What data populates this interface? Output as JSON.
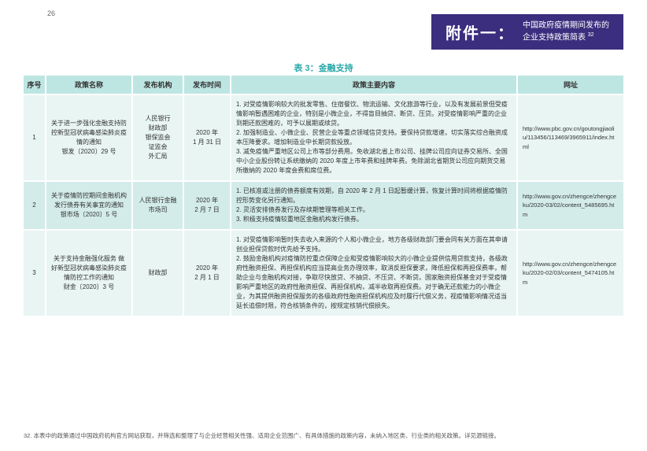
{
  "page": {
    "num": "26"
  },
  "appendix": {
    "title": "附件一：",
    "line1": "中国政府疫情期间发布的",
    "line2": "企业支持政策简表",
    "sup": "32"
  },
  "table_title": "表 3：金融支持",
  "headers": {
    "seq": "序号",
    "name": "政策名称",
    "org": "发布机构",
    "date": "发布时间",
    "body": "政策主要内容",
    "url": "网址"
  },
  "rows": [
    {
      "seq": "1",
      "name": "关于进一步强化金融支持防控新型冠状病毒感染肺炎疫情的通知\n银发〔2020〕29 号",
      "org": "人民银行\n财政部\n银保监会\n证监会\n外汇局",
      "date": "2020 年\n1 月 31 日",
      "body": "1. 对受疫情影响较大的批发零售、住宿餐饮、物流运输、文化旅游等行业，以及有发展前景但受疫情影响暂遇困难的企业，特别是小微企业，不得盲目抽贷、断贷、压贷。对受疫情影响严重的企业到期还款困难的，可予以展期或续贷。\n2. 加强制造业、小微企业、民营企业等重点领域信贷支持。要保持贷款增速，切实落实综合融资成本压降要求。增加制造业中长期贷款投放。\n3. 减免疫情严重地区公司上市等部分费用。免收湖北省上市公司、挂牌公司应向证券交易所、全国中小企业股份转让系统缴纳的 2020 年度上市年费和挂牌年费。免除湖北省期货公司应向期货交易所缴纳的 2020 年度会费和席位费。",
      "url": "http://www.pbc.gov.cn/goutongjiaoliu/113456/113469/3965911/index.html"
    },
    {
      "seq": "2",
      "name": "关于疫情防控期间金融机构发行债券有关事宜的通知\n银市场〔2020〕5 号",
      "org": "人民银行金融\n市场司",
      "date": "2020 年\n2 月 7 日",
      "body": "1. 已核准或注册的债券额度有效期，自 2020 年 2 月 1 日起暂缓计算，恢复计算时间将根据疫情防控形势变化另行通知。\n2. 灵活安排债券发行及存续期管理等相关工作。\n3. 积极支持疫情较重地区金融机构发行债券。",
      "url": "http://www.gov.cn/zhengce/zhengceku/2020-03/02/content_5485695.htm"
    },
    {
      "seq": "3",
      "name": "关于支持金融强化服务 做好新型冠状病毒感染肺炎疫情防控工作的通知\n财金〔2020〕3 号",
      "org": "财政部",
      "date": "2020 年\n2 月 1 日",
      "body": "1. 对受疫情影响暂时失去收入来源的个人和小微企业，地方各级财政部门要会同有关方面在其申请创业担保贷款时优先给予支持。\n2. 鼓励金融机构对疫情防控重点保障企业和受疫情影响较大的小微企业提供信用贷款支持，各级政府性融资担保、再担保机构应当提高业务办理效率，取消反担保要求，降低担保和再担保费率，帮助企业与金融机构对接，争取尽快放贷、不抽贷、不压贷、不断贷。国家融资担保基金对于受疫情影响严重地区的政府性融资担保、再担保机构，减半收取再担保费。对于确无还款能力的小微企业，为其提供融资担保服务的各级政府性融资担保机构应及时履行代偿义务，视疫情影响情况适当延长追偿时限，符合核销条件的，按规定核销代偿损失。",
      "url": "http://www.gov.cn/zhengce/zhengceku/2020-02/03/content_5474105.htm"
    }
  ],
  "footnote": "32. 本表中的政策通过中国政府机构官方网站获取，并筛选和整理了与企业经营相关性强、适用企业范围广、有具体措施的政策内容，未纳入地区类、行业类的相关政策。详见源链接。",
  "colors": {
    "appendix_bg": "#3b2e7e",
    "header_bg": "#bde6e2",
    "row_light": "#e8f5f3",
    "row_dark": "#d3ece9",
    "accent": "#2aa8a8"
  }
}
